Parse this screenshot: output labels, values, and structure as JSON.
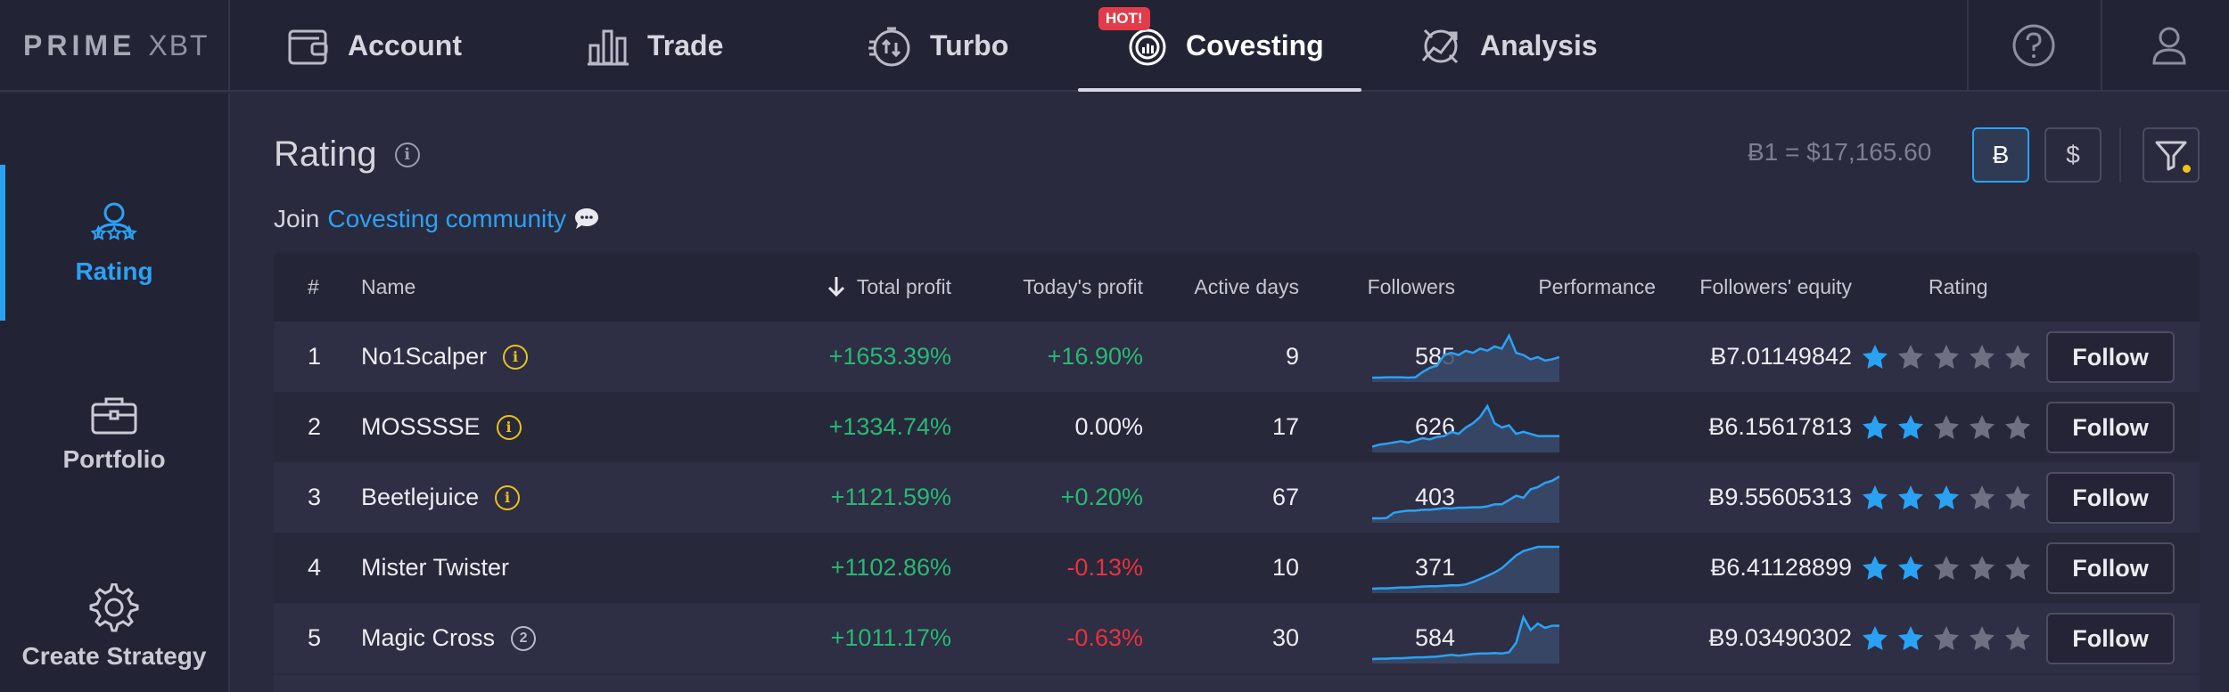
{
  "brand": {
    "part1": "PRIME",
    "part2": "XBT"
  },
  "nav": {
    "items": [
      {
        "label": "Account",
        "icon": "wallet-icon"
      },
      {
        "label": "Trade",
        "icon": "bar-chart-icon"
      },
      {
        "label": "Turbo",
        "icon": "turbo-stopwatch-icon"
      },
      {
        "label": "Covesting",
        "icon": "covesting-icon",
        "badge": "HOT!",
        "active": true
      },
      {
        "label": "Analysis",
        "icon": "analysis-icon"
      }
    ],
    "help_icon": "question-circle-icon",
    "user_icon": "user-icon"
  },
  "sidebar": {
    "items": [
      {
        "label": "Rating",
        "icon": "rating-user-icon",
        "active": true
      },
      {
        "label": "Portfolio",
        "icon": "briefcase-icon"
      },
      {
        "label": "Create Strategy",
        "icon": "gear-icon"
      }
    ]
  },
  "main": {
    "title": "Rating",
    "title_info": "i",
    "join_prefix": "Join",
    "join_link": "Covesting community",
    "rate": "Ƀ1 = $17,165.60",
    "currency": {
      "btc": "Ƀ",
      "usd": "$",
      "selected": "btc"
    }
  },
  "table": {
    "headers": {
      "rank": "#",
      "name": "Name",
      "total_profit": "Total profit",
      "todays_profit": "Today's profit",
      "active_days": "Active days",
      "followers": "Followers",
      "performance": "Performance",
      "followers_equity": "Followers' equity",
      "rating": "Rating"
    },
    "sort_icon": "arrow-down-icon",
    "follow_label": "Follow",
    "rows": [
      {
        "rank": "1",
        "name": "No1Scalper",
        "badge": "i",
        "badge_type": "info",
        "total_profit": "+1653.39%",
        "todays_profit": "+16.90%",
        "today_state": "pos",
        "active_days": "9",
        "followers": "585",
        "equity": "Ƀ7.01149842",
        "rating": 1,
        "performance": [
          0.02,
          0.02,
          0.03,
          0.03,
          0.03,
          0.02,
          0.03,
          0.15,
          0.25,
          0.3,
          0.55,
          0.6,
          0.55,
          0.65,
          0.6,
          0.7,
          0.65,
          0.75,
          0.7,
          1.0,
          0.6,
          0.55,
          0.45,
          0.5,
          0.42,
          0.45,
          0.5
        ]
      },
      {
        "rank": "2",
        "name": "MOSSSSE",
        "badge": "i",
        "badge_type": "info",
        "total_profit": "+1334.74%",
        "todays_profit": "0.00%",
        "today_state": "neu",
        "active_days": "17",
        "followers": "626",
        "equity": "Ƀ6.15617813",
        "rating": 2,
        "performance": [
          0.05,
          0.1,
          0.12,
          0.15,
          0.18,
          0.15,
          0.2,
          0.25,
          0.22,
          0.28,
          0.3,
          0.4,
          0.35,
          0.5,
          0.6,
          0.75,
          1.0,
          0.6,
          0.5,
          0.55,
          0.35,
          0.4,
          0.35,
          0.3,
          0.3,
          0.3,
          0.3
        ]
      },
      {
        "rank": "3",
        "name": "Beetlejuice",
        "badge": "i",
        "badge_type": "info",
        "total_profit": "+1121.59%",
        "todays_profit": "+0.20%",
        "today_state": "pos",
        "active_days": "67",
        "followers": "403",
        "equity": "Ƀ9.55605313",
        "rating": 3,
        "performance": [
          0.02,
          0.02,
          0.03,
          0.15,
          0.18,
          0.2,
          0.2,
          0.22,
          0.22,
          0.24,
          0.26,
          0.25,
          0.27,
          0.27,
          0.28,
          0.28,
          0.3,
          0.35,
          0.35,
          0.45,
          0.55,
          0.5,
          0.7,
          0.75,
          0.85,
          0.9,
          1.0
        ]
      },
      {
        "rank": "4",
        "name": "Mister Twister",
        "badge": "",
        "badge_type": "none",
        "total_profit": "+1102.86%",
        "todays_profit": "-0.13%",
        "today_state": "neg",
        "active_days": "10",
        "followers": "371",
        "equity": "Ƀ6.41128899",
        "rating": 2,
        "performance": [
          0.02,
          0.03,
          0.03,
          0.04,
          0.05,
          0.05,
          0.06,
          0.07,
          0.08,
          0.08,
          0.09,
          0.1,
          0.1,
          0.12,
          0.18,
          0.25,
          0.32,
          0.4,
          0.5,
          0.65,
          0.8,
          0.9,
          0.95,
          1.0,
          1.0,
          1.0,
          1.0
        ]
      },
      {
        "rank": "5",
        "name": "Magic Cross",
        "badge": "2",
        "badge_type": "number",
        "total_profit": "+1011.17%",
        "todays_profit": "-0.63%",
        "today_state": "neg",
        "active_days": "30",
        "followers": "584",
        "equity": "Ƀ9.03490302",
        "rating": 2,
        "performance": [
          0.02,
          0.03,
          0.03,
          0.04,
          0.04,
          0.05,
          0.06,
          0.06,
          0.07,
          0.08,
          0.1,
          0.12,
          0.1,
          0.12,
          0.14,
          0.15,
          0.15,
          0.16,
          0.15,
          0.18,
          0.4,
          1.0,
          0.7,
          0.85,
          0.75,
          0.8,
          0.8
        ]
      }
    ]
  }
}
